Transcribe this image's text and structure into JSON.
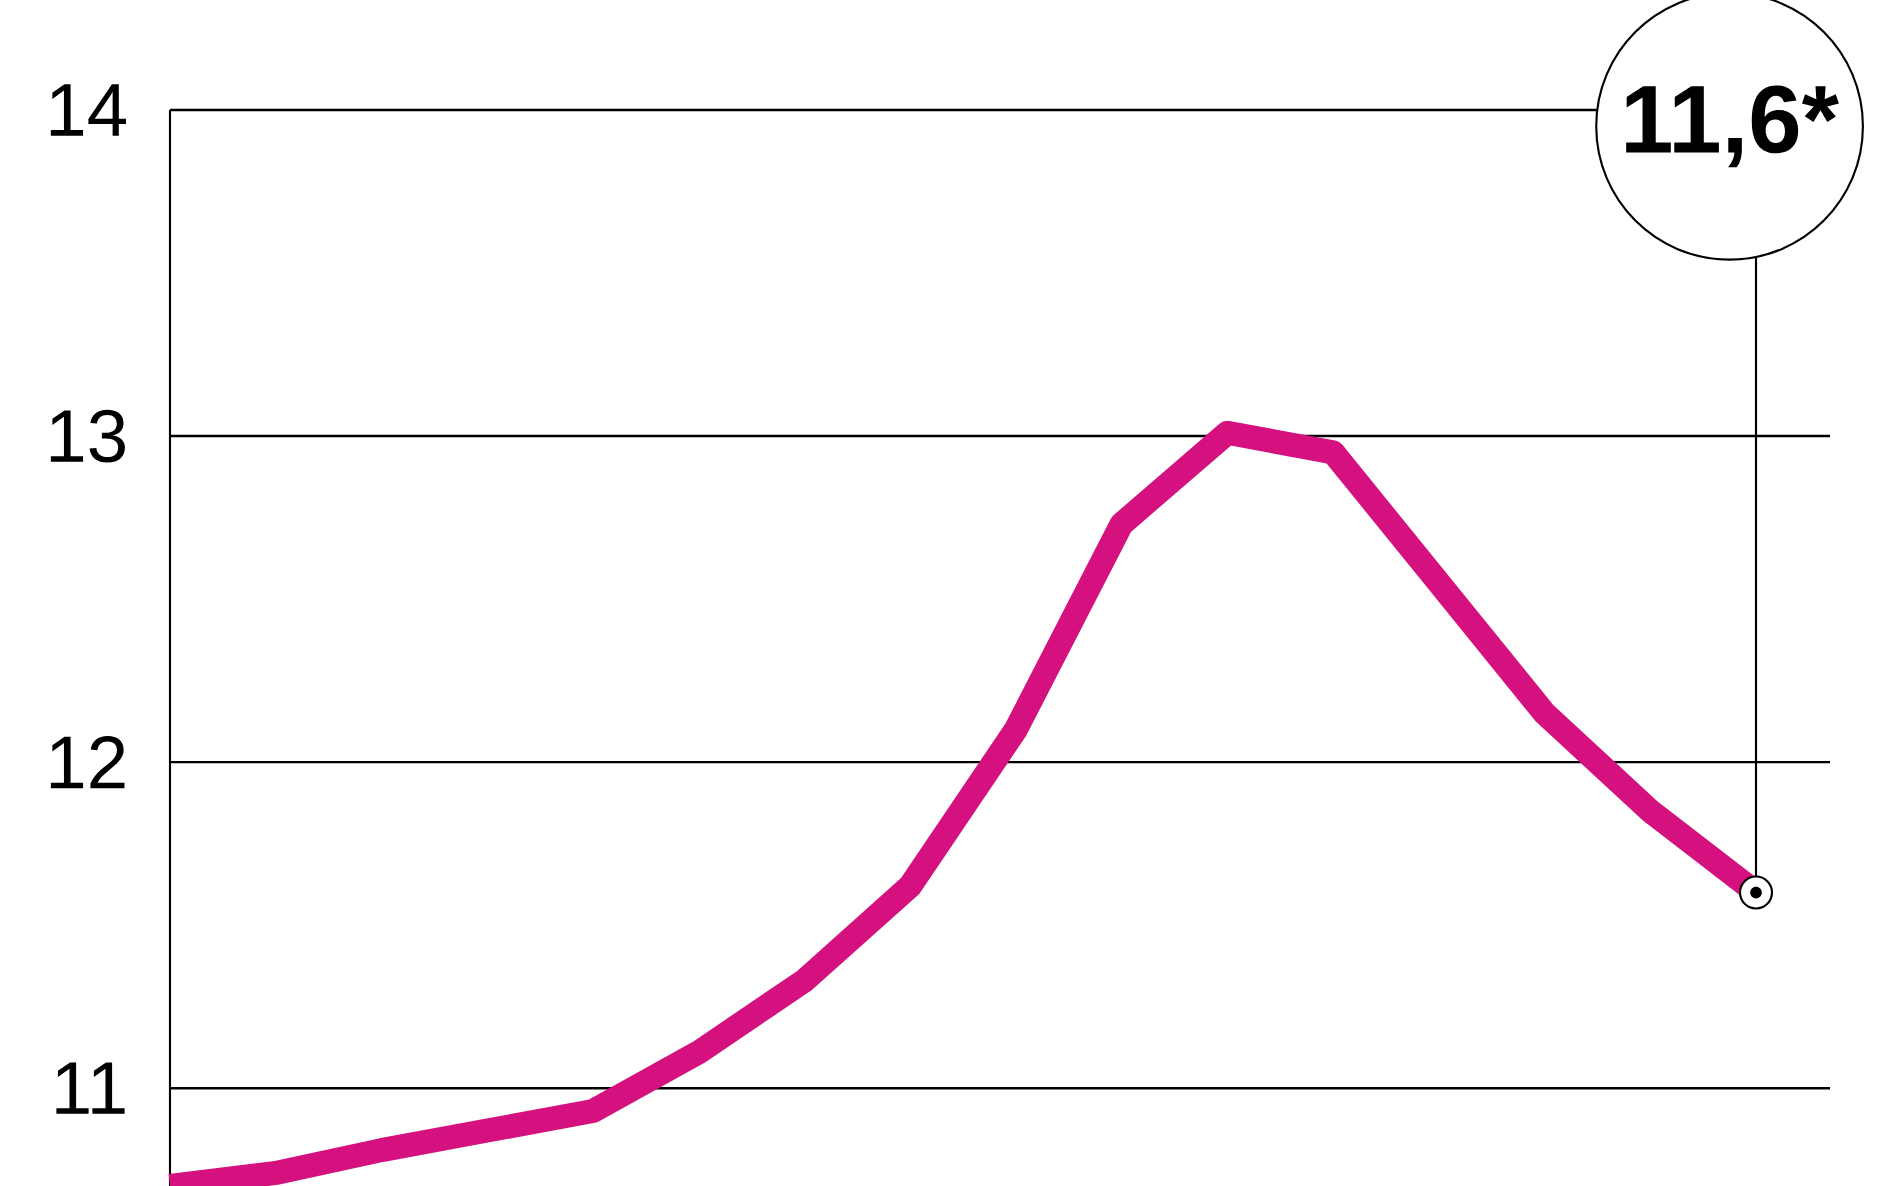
{
  "chart_data": {
    "type": "line",
    "categories": [
      null,
      null,
      null,
      null,
      null,
      null,
      null,
      null,
      null,
      null,
      null,
      null,
      null,
      null,
      null,
      null
    ],
    "series": [
      {
        "color": "#d4117e",
        "values": [
          10.7,
          10.74,
          10.81,
          10.87,
          10.93,
          11.11,
          11.33,
          11.62,
          12.1,
          12.73,
          13.01,
          12.95,
          12.55,
          12.15,
          11.85,
          11.6
        ]
      }
    ],
    "ylim": [
      10.7,
      14
    ],
    "yticks": [
      11,
      12,
      13,
      14
    ],
    "grid": "y",
    "tick_labels": "y",
    "marker": "none",
    "line_style": "solid",
    "annotations": [
      "11,6*"
    ]
  }
}
